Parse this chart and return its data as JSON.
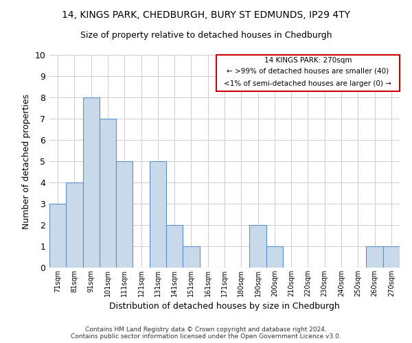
{
  "title_line1": "14, KINGS PARK, CHEDBURGH, BURY ST EDMUNDS, IP29 4TY",
  "title_line2": "Size of property relative to detached houses in Chedburgh",
  "xlabel": "Distribution of detached houses by size in Chedburgh",
  "ylabel": "Number of detached properties",
  "categories": [
    "71sqm",
    "81sqm",
    "91sqm",
    "101sqm",
    "111sqm",
    "121sqm",
    "131sqm",
    "141sqm",
    "151sqm",
    "161sqm",
    "171sqm",
    "180sqm",
    "190sqm",
    "200sqm",
    "210sqm",
    "220sqm",
    "230sqm",
    "240sqm",
    "250sqm",
    "260sqm",
    "270sqm"
  ],
  "values": [
    3,
    4,
    8,
    7,
    5,
    0,
    5,
    2,
    1,
    0,
    0,
    0,
    2,
    1,
    0,
    0,
    0,
    0,
    0,
    1,
    1
  ],
  "bar_color": "#c8d9ea",
  "bar_edge_color": "#5b8fc9",
  "ylim": [
    0,
    10
  ],
  "yticks": [
    0,
    1,
    2,
    3,
    4,
    5,
    6,
    7,
    8,
    9,
    10
  ],
  "grid_color": "#cccccc",
  "annotation_box_color": "#cc0000",
  "annotation_text_line1": "14 KINGS PARK: 270sqm",
  "annotation_text_line2": "← >99% of detached houses are smaller (40)",
  "annotation_text_line3": "<1% of semi-detached houses are larger (0) →",
  "footer_line1": "Contains HM Land Registry data © Crown copyright and database right 2024.",
  "footer_line2": "Contains public sector information licensed under the Open Government Licence v3.0.",
  "highlight_bar_index": 20
}
